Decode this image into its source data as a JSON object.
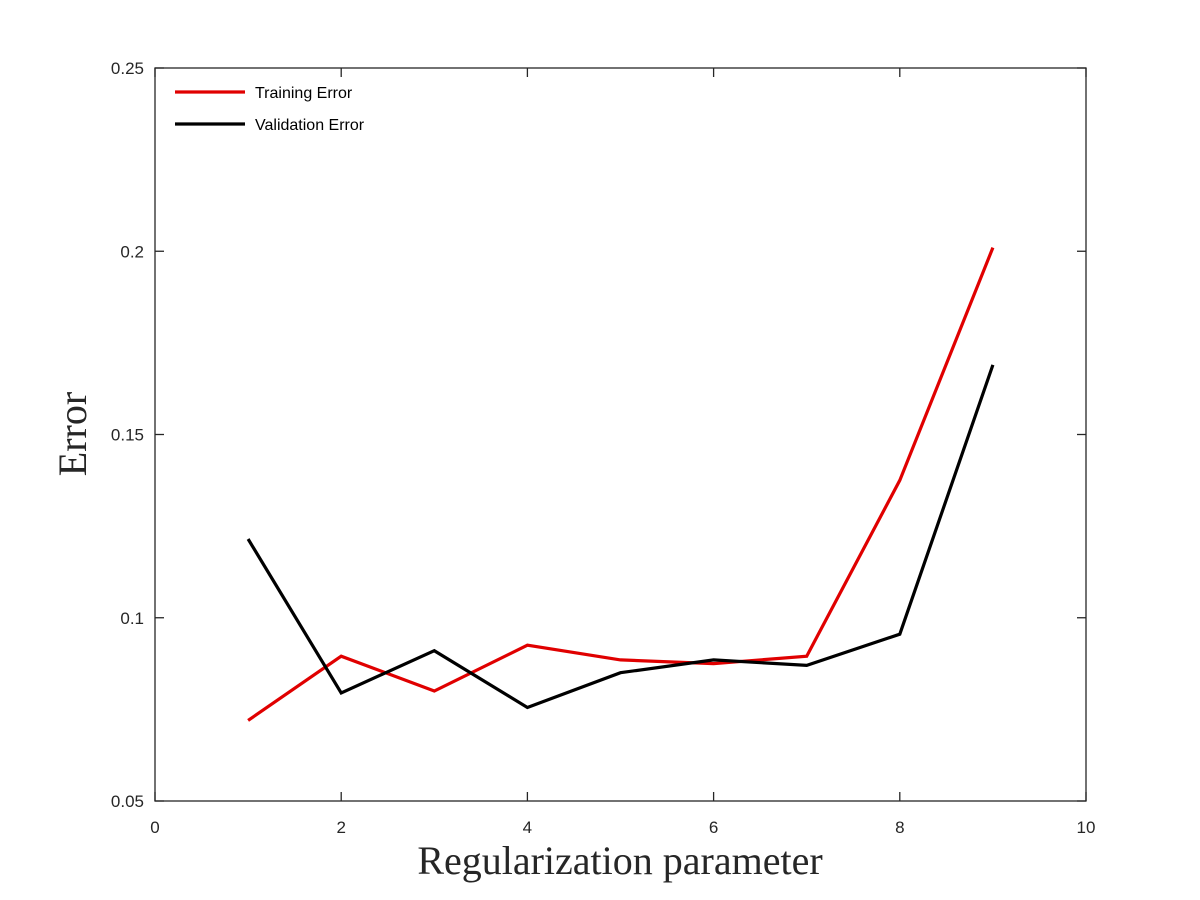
{
  "chart_data": {
    "type": "line",
    "title": "",
    "xlabel": "Regularization parameter",
    "ylabel": "Error",
    "xlim": [
      0,
      10
    ],
    "ylim": [
      0.05,
      0.25
    ],
    "xticks": [
      0,
      2,
      4,
      6,
      8,
      10
    ],
    "xtick_labels": [
      "0",
      "2",
      "4",
      "6",
      "8",
      "10"
    ],
    "yticks": [
      0.05,
      0.1,
      0.15,
      0.2,
      0.25
    ],
    "ytick_labels": [
      "0.05",
      "0.1",
      "0.15",
      "0.2",
      "0.25"
    ],
    "grid": false,
    "legend_position": "top-left",
    "x": [
      1,
      2,
      3,
      4,
      5,
      6,
      7,
      8,
      9
    ],
    "series": [
      {
        "name": "Training Error",
        "color": "#e00000",
        "values": [
          0.072,
          0.0895,
          0.08,
          0.0925,
          0.0885,
          0.0875,
          0.0895,
          0.1375,
          0.201
        ]
      },
      {
        "name": "Validation Error",
        "color": "#000000",
        "values": [
          0.1215,
          0.0795,
          0.091,
          0.0755,
          0.085,
          0.0885,
          0.087,
          0.0955,
          0.169
        ]
      }
    ]
  }
}
